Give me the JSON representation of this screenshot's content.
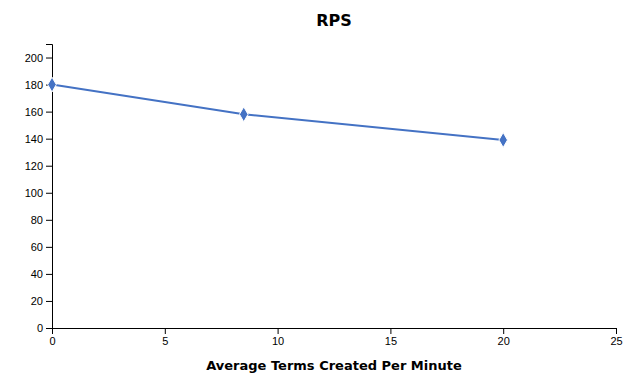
{
  "chart_data": {
    "type": "line",
    "title": "RPS",
    "xlabel": "Average Terms Created Per Minute",
    "x": [
      0,
      8.5,
      20
    ],
    "values": [
      180,
      158,
      139
    ],
    "color": "#4472C4",
    "marker": "diamond",
    "xlim": [
      0,
      25
    ],
    "ylim": [
      0,
      210
    ],
    "xticks": [
      0,
      5,
      10,
      15,
      20,
      25
    ],
    "yticks": [
      0,
      20,
      40,
      60,
      80,
      100,
      120,
      140,
      160,
      180,
      200
    ],
    "grid": false
  }
}
